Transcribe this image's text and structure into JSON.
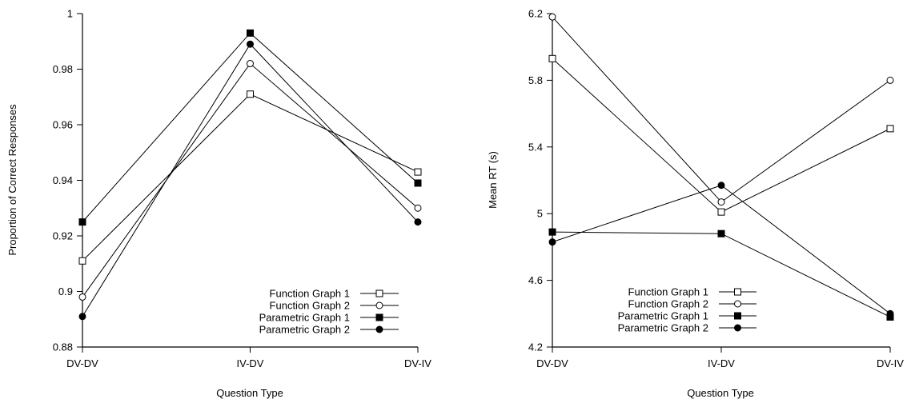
{
  "chart_data": [
    {
      "type": "line",
      "categories": [
        "DV-DV",
        "IV-DV",
        "DV-IV"
      ],
      "xlabel": "Question Type",
      "ylabel": "Proportion of Correct Responses",
      "ylim": [
        0.88,
        1.0
      ],
      "yticks": [
        "0.88",
        "0.9",
        "0.92",
        "0.94",
        "0.96",
        "0.98",
        "1"
      ],
      "legend_position": "bottom-right",
      "series": [
        {
          "name": "Function Graph 1",
          "marker": "square-open",
          "values": [
            0.911,
            0.971,
            0.943
          ]
        },
        {
          "name": "Function Graph 2",
          "marker": "circle-open",
          "values": [
            0.898,
            0.982,
            0.93
          ]
        },
        {
          "name": "Parametric Graph 1",
          "marker": "square-filled",
          "values": [
            0.925,
            0.993,
            0.939
          ]
        },
        {
          "name": "Parametric Graph 2",
          "marker": "circle-filled",
          "values": [
            0.891,
            0.989,
            0.925
          ]
        }
      ]
    },
    {
      "type": "line",
      "categories": [
        "DV-DV",
        "IV-DV",
        "DV-IV"
      ],
      "xlabel": "Question Type",
      "ylabel": "Mean RT (s)",
      "ylim": [
        4.2,
        6.2
      ],
      "yticks": [
        "4.2",
        "4.6",
        "5",
        "5.4",
        "5.8",
        "6.2"
      ],
      "legend_position": "bottom-left",
      "series": [
        {
          "name": "Function Graph 1",
          "marker": "square-open",
          "values": [
            5.93,
            5.01,
            5.51
          ]
        },
        {
          "name": "Function Graph 2",
          "marker": "circle-open",
          "values": [
            6.18,
            5.07,
            5.8
          ]
        },
        {
          "name": "Parametric Graph 1",
          "marker": "square-filled",
          "values": [
            4.89,
            4.88,
            4.38
          ]
        },
        {
          "name": "Parametric Graph 2",
          "marker": "circle-filled",
          "values": [
            4.83,
            5.17,
            4.4
          ]
        }
      ]
    }
  ]
}
